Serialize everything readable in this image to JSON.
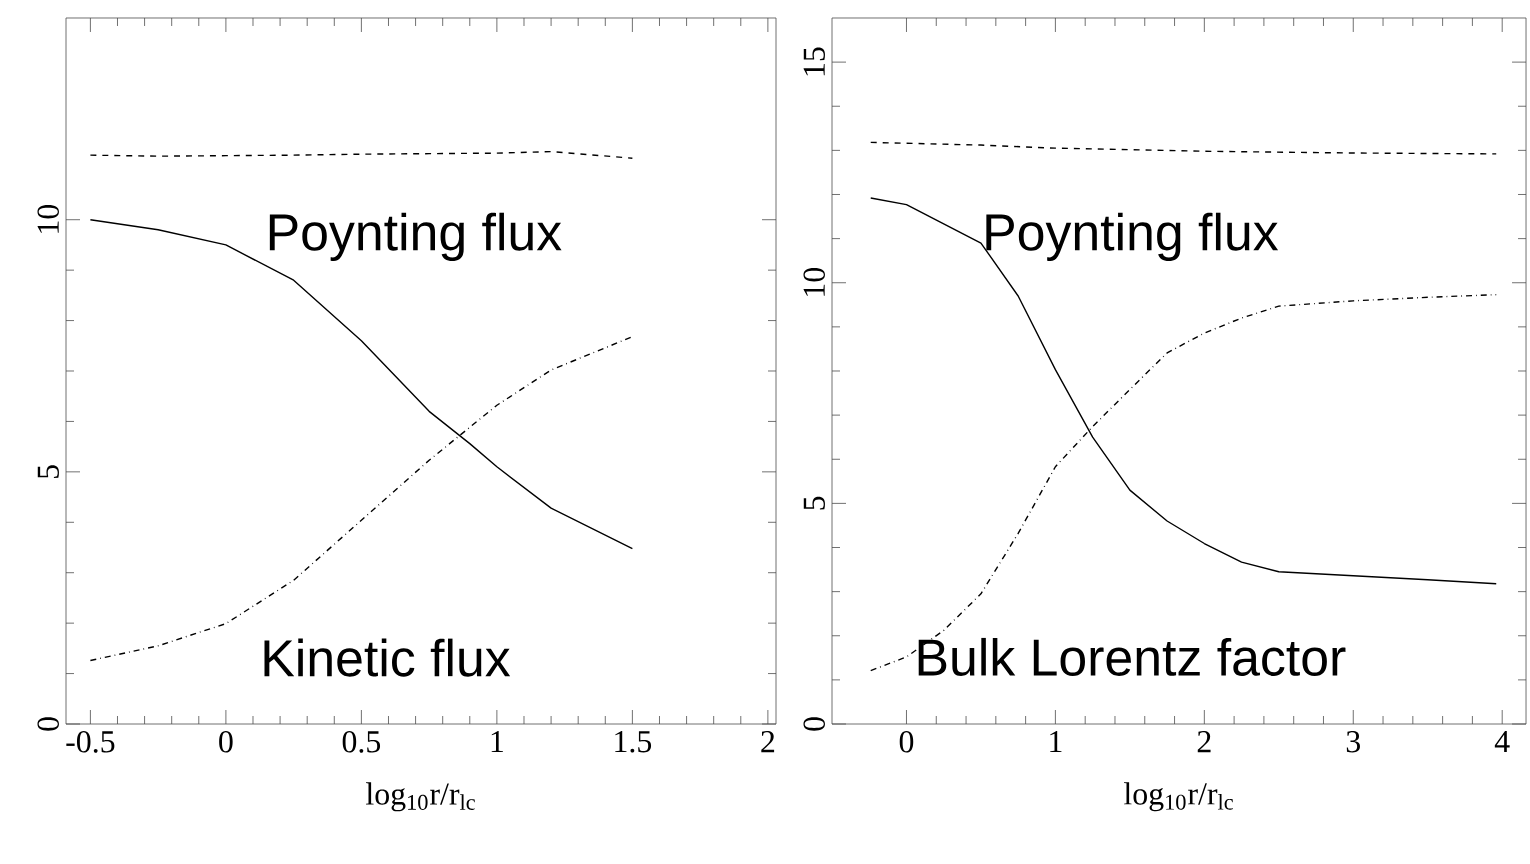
{
  "chart_data": [
    {
      "type": "line",
      "xlabel": "log$_{10}$r/r$_{lc}$",
      "xlim": [
        -0.59,
        2.03
      ],
      "ylim": [
        0,
        14
      ],
      "xticks": [
        -0.5,
        0,
        0.5,
        1,
        1.5,
        2
      ],
      "yticks": [
        0,
        5,
        10
      ],
      "series": [
        {
          "color": "#000000",
          "line_style": "dashed",
          "x": [
            -0.5,
            -0.25,
            0,
            0.25,
            0.5,
            0.75,
            1,
            1.2,
            1.5
          ],
          "values": [
            11.28,
            11.26,
            11.27,
            11.28,
            11.3,
            11.31,
            11.32,
            11.35,
            11.22
          ]
        },
        {
          "color": "#000000",
          "line_style": "solid",
          "x": [
            -0.5,
            -0.25,
            0,
            0.25,
            0.5,
            0.75,
            0.9,
            1,
            1.2,
            1.5
          ],
          "values": [
            10.0,
            9.8,
            9.5,
            8.8,
            7.6,
            6.2,
            5.56,
            5.1,
            4.28,
            3.48
          ]
        },
        {
          "color": "#000000",
          "line_style": "dashdot",
          "x": [
            -0.5,
            -0.25,
            0,
            0.25,
            0.5,
            0.75,
            1,
            1.2,
            1.5
          ],
          "values": [
            1.26,
            1.55,
            1.99,
            2.85,
            4.04,
            5.23,
            6.32,
            7.02,
            7.68
          ]
        }
      ],
      "annotations": [
        "Poynting flux",
        "Kinetic flux"
      ]
    },
    {
      "type": "line",
      "xlabel": "log$_{10}$r/r$_{lc}$",
      "xlim": [
        -0.5,
        4.16
      ],
      "ylim": [
        0,
        16
      ],
      "xticks": [
        0,
        1,
        2,
        3,
        4
      ],
      "yticks": [
        0,
        5,
        10,
        15
      ],
      "series": [
        {
          "color": "#000000",
          "line_style": "dashed",
          "x": [
            -0.24,
            0.5,
            1,
            2,
            3,
            3.96
          ],
          "values": [
            13.18,
            13.12,
            13.05,
            12.98,
            12.94,
            12.92
          ]
        },
        {
          "color": "#000000",
          "line_style": "solid",
          "x": [
            -0.24,
            0,
            0.5,
            0.75,
            1,
            1.25,
            1.5,
            1.75,
            2,
            2.25,
            2.5,
            3,
            3.5,
            3.96
          ],
          "values": [
            11.92,
            11.77,
            10.9,
            9.7,
            8.03,
            6.5,
            5.3,
            4.6,
            4.09,
            3.67,
            3.45,
            3.36,
            3.27,
            3.18
          ]
        },
        {
          "color": "#000000",
          "line_style": "dashdot",
          "x": [
            -0.24,
            0,
            0.25,
            0.5,
            0.75,
            1,
            1.25,
            1.5,
            1.75,
            2,
            2.25,
            2.5,
            3,
            3.5,
            3.96
          ],
          "values": [
            1.21,
            1.52,
            2.12,
            2.95,
            4.32,
            5.83,
            6.74,
            7.58,
            8.41,
            8.86,
            9.2,
            9.47,
            9.59,
            9.67,
            9.73
          ]
        }
      ],
      "annotations": [
        "Poynting flux",
        "Bulk Lorentz factor"
      ]
    }
  ]
}
